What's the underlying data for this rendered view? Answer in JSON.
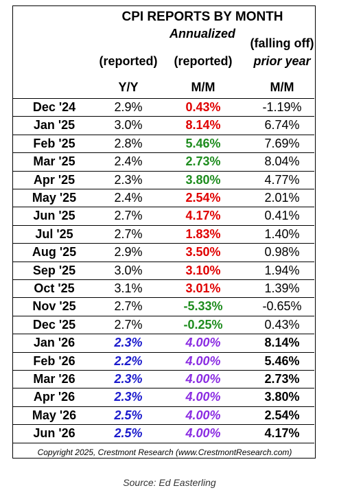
{
  "header": {
    "title": "CPI REPORTS BY MONTH",
    "subtitle": "Annualized",
    "columns": [
      {
        "lines": [
          "(reported)",
          "Y/Y"
        ]
      },
      {
        "lines": [
          "(reported)",
          "M/M"
        ]
      },
      {
        "lines": [
          "(falling off)",
          "prior year",
          "M/M"
        ]
      }
    ]
  },
  "table": {
    "rows": [
      {
        "cells": [
          "Dec '24",
          "2.9%",
          "0.43%",
          "-1.19%"
        ],
        "colors": [
          "#000000",
          "#000000",
          "#e00000",
          "#000000"
        ],
        "projected": false
      },
      {
        "cells": [
          "Jan '25",
          "3.0%",
          "8.14%",
          "6.74%"
        ],
        "colors": [
          "#000000",
          "#000000",
          "#e00000",
          "#000000"
        ],
        "projected": false
      },
      {
        "cells": [
          "Feb '25",
          "2.8%",
          "5.46%",
          "7.69%"
        ],
        "colors": [
          "#000000",
          "#000000",
          "#1e8c1e",
          "#000000"
        ],
        "projected": false
      },
      {
        "cells": [
          "Mar '25",
          "2.4%",
          "2.73%",
          "8.04%"
        ],
        "colors": [
          "#000000",
          "#000000",
          "#1e8c1e",
          "#000000"
        ],
        "projected": false
      },
      {
        "cells": [
          "Apr '25",
          "2.3%",
          "3.80%",
          "4.77%"
        ],
        "colors": [
          "#000000",
          "#000000",
          "#1e8c1e",
          "#000000"
        ],
        "projected": false
      },
      {
        "cells": [
          "May '25",
          "2.4%",
          "2.54%",
          "2.01%"
        ],
        "colors": [
          "#000000",
          "#000000",
          "#e00000",
          "#000000"
        ],
        "projected": false
      },
      {
        "cells": [
          "Jun '25",
          "2.7%",
          "4.17%",
          "0.41%"
        ],
        "colors": [
          "#000000",
          "#000000",
          "#e00000",
          "#000000"
        ],
        "projected": false
      },
      {
        "cells": [
          "Jul '25",
          "2.7%",
          "1.83%",
          "1.40%"
        ],
        "colors": [
          "#000000",
          "#000000",
          "#e00000",
          "#000000"
        ],
        "projected": false
      },
      {
        "cells": [
          "Aug '25",
          "2.9%",
          "3.50%",
          "0.98%"
        ],
        "colors": [
          "#000000",
          "#000000",
          "#e00000",
          "#000000"
        ],
        "projected": false
      },
      {
        "cells": [
          "Sep '25",
          "3.0%",
          "3.10%",
          "1.94%"
        ],
        "colors": [
          "#000000",
          "#000000",
          "#e00000",
          "#000000"
        ],
        "projected": false
      },
      {
        "cells": [
          "Oct '25",
          "3.1%",
          "3.01%",
          "1.39%"
        ],
        "colors": [
          "#000000",
          "#000000",
          "#e00000",
          "#000000"
        ],
        "projected": false
      },
      {
        "cells": [
          "Nov '25",
          "2.7%",
          "-5.33%",
          "-0.65%"
        ],
        "colors": [
          "#000000",
          "#000000",
          "#1e8c1e",
          "#000000"
        ],
        "projected": false
      },
      {
        "cells": [
          "Dec '25",
          "2.7%",
          "-0.25%",
          "0.43%"
        ],
        "colors": [
          "#000000",
          "#000000",
          "#1e8c1e",
          "#000000"
        ],
        "projected": false
      },
      {
        "cells": [
          "Jan '26",
          "2.3%",
          "4.00%",
          "8.14%"
        ],
        "colors": [
          "#000000",
          "#1a1acc",
          "#8a2be2",
          "#000000"
        ],
        "projected": true
      },
      {
        "cells": [
          "Feb '26",
          "2.2%",
          "4.00%",
          "5.46%"
        ],
        "colors": [
          "#000000",
          "#1a1acc",
          "#8a2be2",
          "#000000"
        ],
        "projected": true
      },
      {
        "cells": [
          "Mar '26",
          "2.3%",
          "4.00%",
          "2.73%"
        ],
        "colors": [
          "#000000",
          "#1a1acc",
          "#8a2be2",
          "#000000"
        ],
        "projected": true
      },
      {
        "cells": [
          "Apr '26",
          "2.3%",
          "4.00%",
          "3.80%"
        ],
        "colors": [
          "#000000",
          "#1a1acc",
          "#8a2be2",
          "#000000"
        ],
        "projected": true
      },
      {
        "cells": [
          "May '26",
          "2.5%",
          "4.00%",
          "2.54%"
        ],
        "colors": [
          "#000000",
          "#1a1acc",
          "#8a2be2",
          "#000000"
        ],
        "projected": true
      },
      {
        "cells": [
          "Jun '26",
          "2.5%",
          "4.00%",
          "4.17%"
        ],
        "colors": [
          "#000000",
          "#1a1acc",
          "#8a2be2",
          "#000000"
        ],
        "projected": true
      }
    ]
  },
  "footer": {
    "copyright": "Copyright 2025, Crestmont Research (www.CrestmontResearch.com)",
    "source": "Source: Ed Easterling"
  }
}
